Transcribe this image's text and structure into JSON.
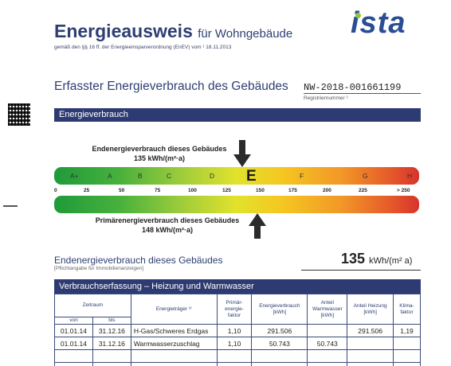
{
  "header": {
    "title_main": "Energieausweis",
    "title_sub": "für Wohngebäude",
    "legal": "gemäß den §§ 16 ff. der Energieeinsparverordnung (EnEV) vom ¹ 18.11.2013",
    "logo": "ista"
  },
  "section": {
    "title": "Erfasster Energieverbrauch des Gebäudes",
    "reg_number": "NW-2018-001661199",
    "reg_label": "Registriernummer ²"
  },
  "energy_bar": {
    "heading": "Energieverbrauch",
    "end_label_line1": "Endenergieverbrauch dieses Gebäudes",
    "end_label_line2": "135 kWh/(m²·a)",
    "prim_label_line1": "Primärenergieverbrauch dieses Gebäudes",
    "prim_label_line2": "148 kWh/(m²·a)",
    "classes": [
      "A+",
      "A",
      "B",
      "C",
      "D",
      "E",
      "F",
      "G",
      "H"
    ],
    "active_class": "E",
    "ticks": [
      "0",
      "25",
      "50",
      "75",
      "100",
      "125",
      "150",
      "175",
      "200",
      "225",
      "> 250"
    ],
    "end_value": 135,
    "prim_value": 148
  },
  "summary": {
    "label": "Endenergieverbrauch dieses Gebäudes",
    "note": "[Pflichtangabe für Immobilienanzeigen]",
    "value": "135",
    "unit": "kWh/(m² a)"
  },
  "table": {
    "heading": "Verbrauchserfassung – Heizung und Warmwasser",
    "headers": {
      "zeitraum": "Zeitraum",
      "von": "von",
      "bis": "bis",
      "energietraeger": "Energieträger ³⁾",
      "primaer": "Primär-energie-faktor",
      "verbrauch": "Energieverbrauch [kWh]",
      "anteil_ww": "Anteil Warmwasser [kWh]",
      "anteil_hz": "Anteil Heizung [kWh]",
      "klima": "Klima-faktor"
    },
    "rows": [
      {
        "von": "01.01.14",
        "bis": "31.12.16",
        "traeger": "H-Gas/Schweres Erdgas",
        "faktor": "1,10",
        "verbrauch": "291.506",
        "ww": "",
        "hz": "291.506",
        "klima": "1,19"
      },
      {
        "von": "01.01.14",
        "bis": "31.12.16",
        "traeger": "Warmwasserzuschlag",
        "faktor": "1,10",
        "verbrauch": "50.743",
        "ww": "50.743",
        "hz": "",
        "klima": ""
      }
    ]
  },
  "colors": {
    "brand_blue": "#2e3b73",
    "logo_green": "#8dc63f"
  },
  "icons": [
    "arrow-down-icon",
    "arrow-up-icon",
    "qr-code-icon"
  ]
}
